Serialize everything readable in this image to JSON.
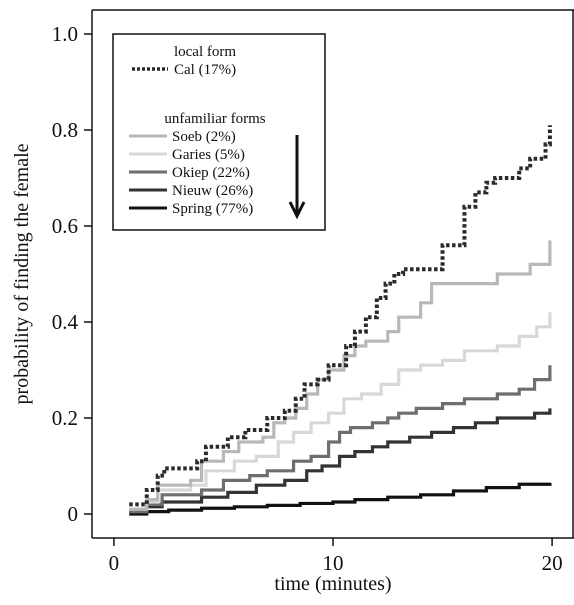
{
  "chart_data": {
    "type": "line",
    "step": true,
    "xlabel": "time (minutes)",
    "ylabel": "probability of finding the female",
    "xlim": [
      -1,
      21
    ],
    "ylim": [
      -0.05,
      1.05
    ],
    "x_ticks": [
      {
        "value": 0,
        "label": "0"
      },
      {
        "value": 10,
        "label": "10"
      },
      {
        "value": 20,
        "label": "20"
      }
    ],
    "y_ticks": [
      {
        "value": 0,
        "label": "0"
      },
      {
        "value": 0.2,
        "label": "0.2"
      },
      {
        "value": 0.4,
        "label": "0.4"
      },
      {
        "value": 0.6,
        "label": "0.6"
      },
      {
        "value": 0.8,
        "label": "0.8"
      },
      {
        "value": 1.0,
        "label": "1.0"
      }
    ],
    "grid": false,
    "legend": {
      "position": "top-left",
      "local_heading": "local form",
      "unfamiliar_heading": "unfamiliar forms",
      "arrow_icon": "down-arrow-icon"
    },
    "series": [
      {
        "name": "Cal (17%)",
        "group": "local",
        "color": "#2a2a2a",
        "dashed": true,
        "x": [
          0.7,
          1.5,
          2.0,
          2.3,
          3.8,
          4.2,
          5.2,
          6.0,
          7.0,
          7.8,
          8.3,
          8.7,
          9.3,
          9.8,
          10.6,
          11.0,
          11.5,
          12.0,
          12.4,
          12.8,
          13.2,
          14.0,
          15.0,
          16.0,
          16.5,
          17.0,
          17.4,
          18.5,
          19.0,
          19.7,
          19.9
        ],
        "y": [
          0.02,
          0.05,
          0.08,
          0.095,
          0.11,
          0.14,
          0.16,
          0.175,
          0.2,
          0.215,
          0.24,
          0.27,
          0.28,
          0.31,
          0.35,
          0.38,
          0.41,
          0.45,
          0.48,
          0.5,
          0.51,
          0.51,
          0.56,
          0.64,
          0.67,
          0.69,
          0.7,
          0.72,
          0.74,
          0.77,
          0.81
        ]
      },
      {
        "name": "Soeb (2%)",
        "group": "unfamiliar",
        "color": "#b8b8b8",
        "dashed": false,
        "x": [
          0.7,
          1.5,
          2.0,
          3.5,
          4.0,
          5.0,
          5.7,
          6.8,
          7.3,
          7.8,
          8.3,
          8.8,
          9.3,
          9.8,
          10.5,
          11.0,
          11.5,
          12.5,
          13.0,
          14.0,
          14.5,
          15.0,
          16.0,
          17.5,
          19.0,
          19.9
        ],
        "y": [
          0.01,
          0.03,
          0.06,
          0.07,
          0.11,
          0.13,
          0.15,
          0.16,
          0.19,
          0.2,
          0.22,
          0.25,
          0.28,
          0.3,
          0.33,
          0.35,
          0.36,
          0.38,
          0.41,
          0.44,
          0.48,
          0.48,
          0.48,
          0.5,
          0.52,
          0.57
        ]
      },
      {
        "name": "Garies (5%)",
        "group": "unfamiliar",
        "color": "#d8d8d8",
        "dashed": false,
        "x": [
          0.7,
          1.5,
          2.0,
          3.5,
          4.2,
          5.5,
          6.5,
          7.5,
          8.2,
          9.0,
          9.8,
          10.5,
          11.3,
          12.2,
          13.0,
          14.0,
          15.0,
          16.0,
          17.5,
          18.5,
          19.3,
          19.9
        ],
        "y": [
          0.01,
          0.025,
          0.05,
          0.06,
          0.09,
          0.11,
          0.12,
          0.15,
          0.17,
          0.19,
          0.21,
          0.24,
          0.25,
          0.27,
          0.3,
          0.31,
          0.32,
          0.34,
          0.35,
          0.37,
          0.39,
          0.42
        ]
      },
      {
        "name": "Okiep (22%)",
        "group": "unfamiliar",
        "color": "#6e6e6e",
        "dashed": false,
        "x": [
          0.7,
          1.5,
          2.2,
          4.0,
          5.0,
          6.2,
          7.0,
          8.2,
          9.0,
          9.8,
          10.3,
          10.8,
          11.8,
          12.5,
          13.0,
          13.8,
          15.0,
          16.0,
          17.5,
          18.5,
          19.2,
          19.9
        ],
        "y": [
          0.005,
          0.02,
          0.04,
          0.05,
          0.07,
          0.08,
          0.09,
          0.11,
          0.12,
          0.15,
          0.17,
          0.18,
          0.19,
          0.2,
          0.21,
          0.22,
          0.23,
          0.24,
          0.25,
          0.26,
          0.28,
          0.31
        ]
      },
      {
        "name": "Nieuw (26%)",
        "group": "unfamiliar",
        "color": "#333333",
        "dashed": false,
        "x": [
          0.7,
          1.5,
          2.2,
          4.0,
          5.2,
          6.5,
          7.8,
          8.8,
          9.5,
          10.3,
          11.0,
          11.8,
          12.5,
          13.5,
          14.5,
          15.5,
          16.5,
          17.5,
          18.5,
          19.2,
          19.9
        ],
        "y": [
          0.005,
          0.015,
          0.025,
          0.035,
          0.045,
          0.06,
          0.07,
          0.09,
          0.1,
          0.12,
          0.13,
          0.14,
          0.15,
          0.16,
          0.17,
          0.18,
          0.19,
          0.2,
          0.2,
          0.21,
          0.22
        ]
      },
      {
        "name": "Spring (77%)",
        "group": "unfamiliar",
        "color": "#111111",
        "dashed": false,
        "x": [
          0.7,
          1.5,
          2.5,
          4.0,
          5.5,
          7.0,
          8.5,
          10.0,
          11.0,
          12.5,
          14.0,
          15.5,
          17.0,
          18.5,
          19.9
        ],
        "y": [
          0.0,
          0.005,
          0.008,
          0.012,
          0.015,
          0.018,
          0.022,
          0.025,
          0.03,
          0.035,
          0.04,
          0.048,
          0.055,
          0.062,
          0.065
        ]
      }
    ]
  }
}
